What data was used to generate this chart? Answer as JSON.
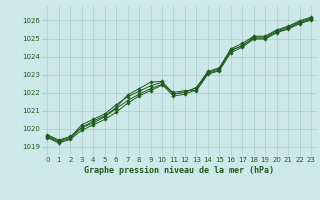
{
  "title": "Graphe pression niveau de la mer (hPa)",
  "bg_color": "#cce8e8",
  "grid_color": "#aacccc",
  "line_color": "#1e5c1e",
  "marker_color": "#1e5c1e",
  "ylim": [
    1018.5,
    1026.8
  ],
  "xlim": [
    -0.5,
    23.5
  ],
  "yticks": [
    1019,
    1020,
    1021,
    1022,
    1023,
    1024,
    1025,
    1026
  ],
  "xticks": [
    0,
    1,
    2,
    3,
    4,
    5,
    6,
    7,
    8,
    9,
    10,
    11,
    12,
    13,
    14,
    15,
    16,
    17,
    18,
    19,
    20,
    21,
    22,
    23
  ],
  "hours": [
    0,
    1,
    2,
    3,
    4,
    5,
    6,
    7,
    8,
    9,
    10,
    11,
    12,
    13,
    14,
    15,
    16,
    17,
    18,
    19,
    20,
    21,
    22,
    23
  ],
  "line1": [
    1019.6,
    1019.3,
    1019.5,
    1020.0,
    1020.3,
    1020.6,
    1021.0,
    1021.5,
    1021.9,
    1022.2,
    1022.5,
    1022.1,
    1022.2,
    1022.2,
    1023.1,
    1023.3,
    1024.3,
    1024.6,
    1025.05,
    1025.05,
    1025.4,
    1025.6,
    1025.9,
    1026.1
  ],
  "line2": [
    1019.6,
    1019.3,
    1019.5,
    1020.1,
    1020.35,
    1020.7,
    1021.15,
    1021.6,
    1021.95,
    1022.25,
    1022.5,
    1021.85,
    1021.95,
    1022.2,
    1023.1,
    1023.3,
    1024.35,
    1024.65,
    1025.05,
    1025.05,
    1025.4,
    1025.6,
    1025.9,
    1026.1
  ],
  "line3": [
    1019.6,
    1019.3,
    1019.5,
    1020.2,
    1020.5,
    1020.8,
    1021.3,
    1021.75,
    1022.05,
    1022.35,
    1022.55,
    1021.9,
    1022.0,
    1022.25,
    1023.15,
    1023.35,
    1024.4,
    1024.7,
    1025.1,
    1025.1,
    1025.45,
    1025.65,
    1025.95,
    1026.15
  ],
  "line4": [
    1019.6,
    1019.3,
    1019.5,
    1020.0,
    1020.35,
    1020.65,
    1021.1,
    1021.8,
    1022.15,
    1022.5,
    1022.55,
    1021.85,
    1021.95,
    1022.2,
    1023.05,
    1023.25,
    1024.3,
    1024.5,
    1025.0,
    1025.0,
    1025.35,
    1025.55,
    1025.85,
    1026.05
  ],
  "tick_fontsize": 5,
  "xlabel_fontsize": 6,
  "title_fontweight": "bold"
}
